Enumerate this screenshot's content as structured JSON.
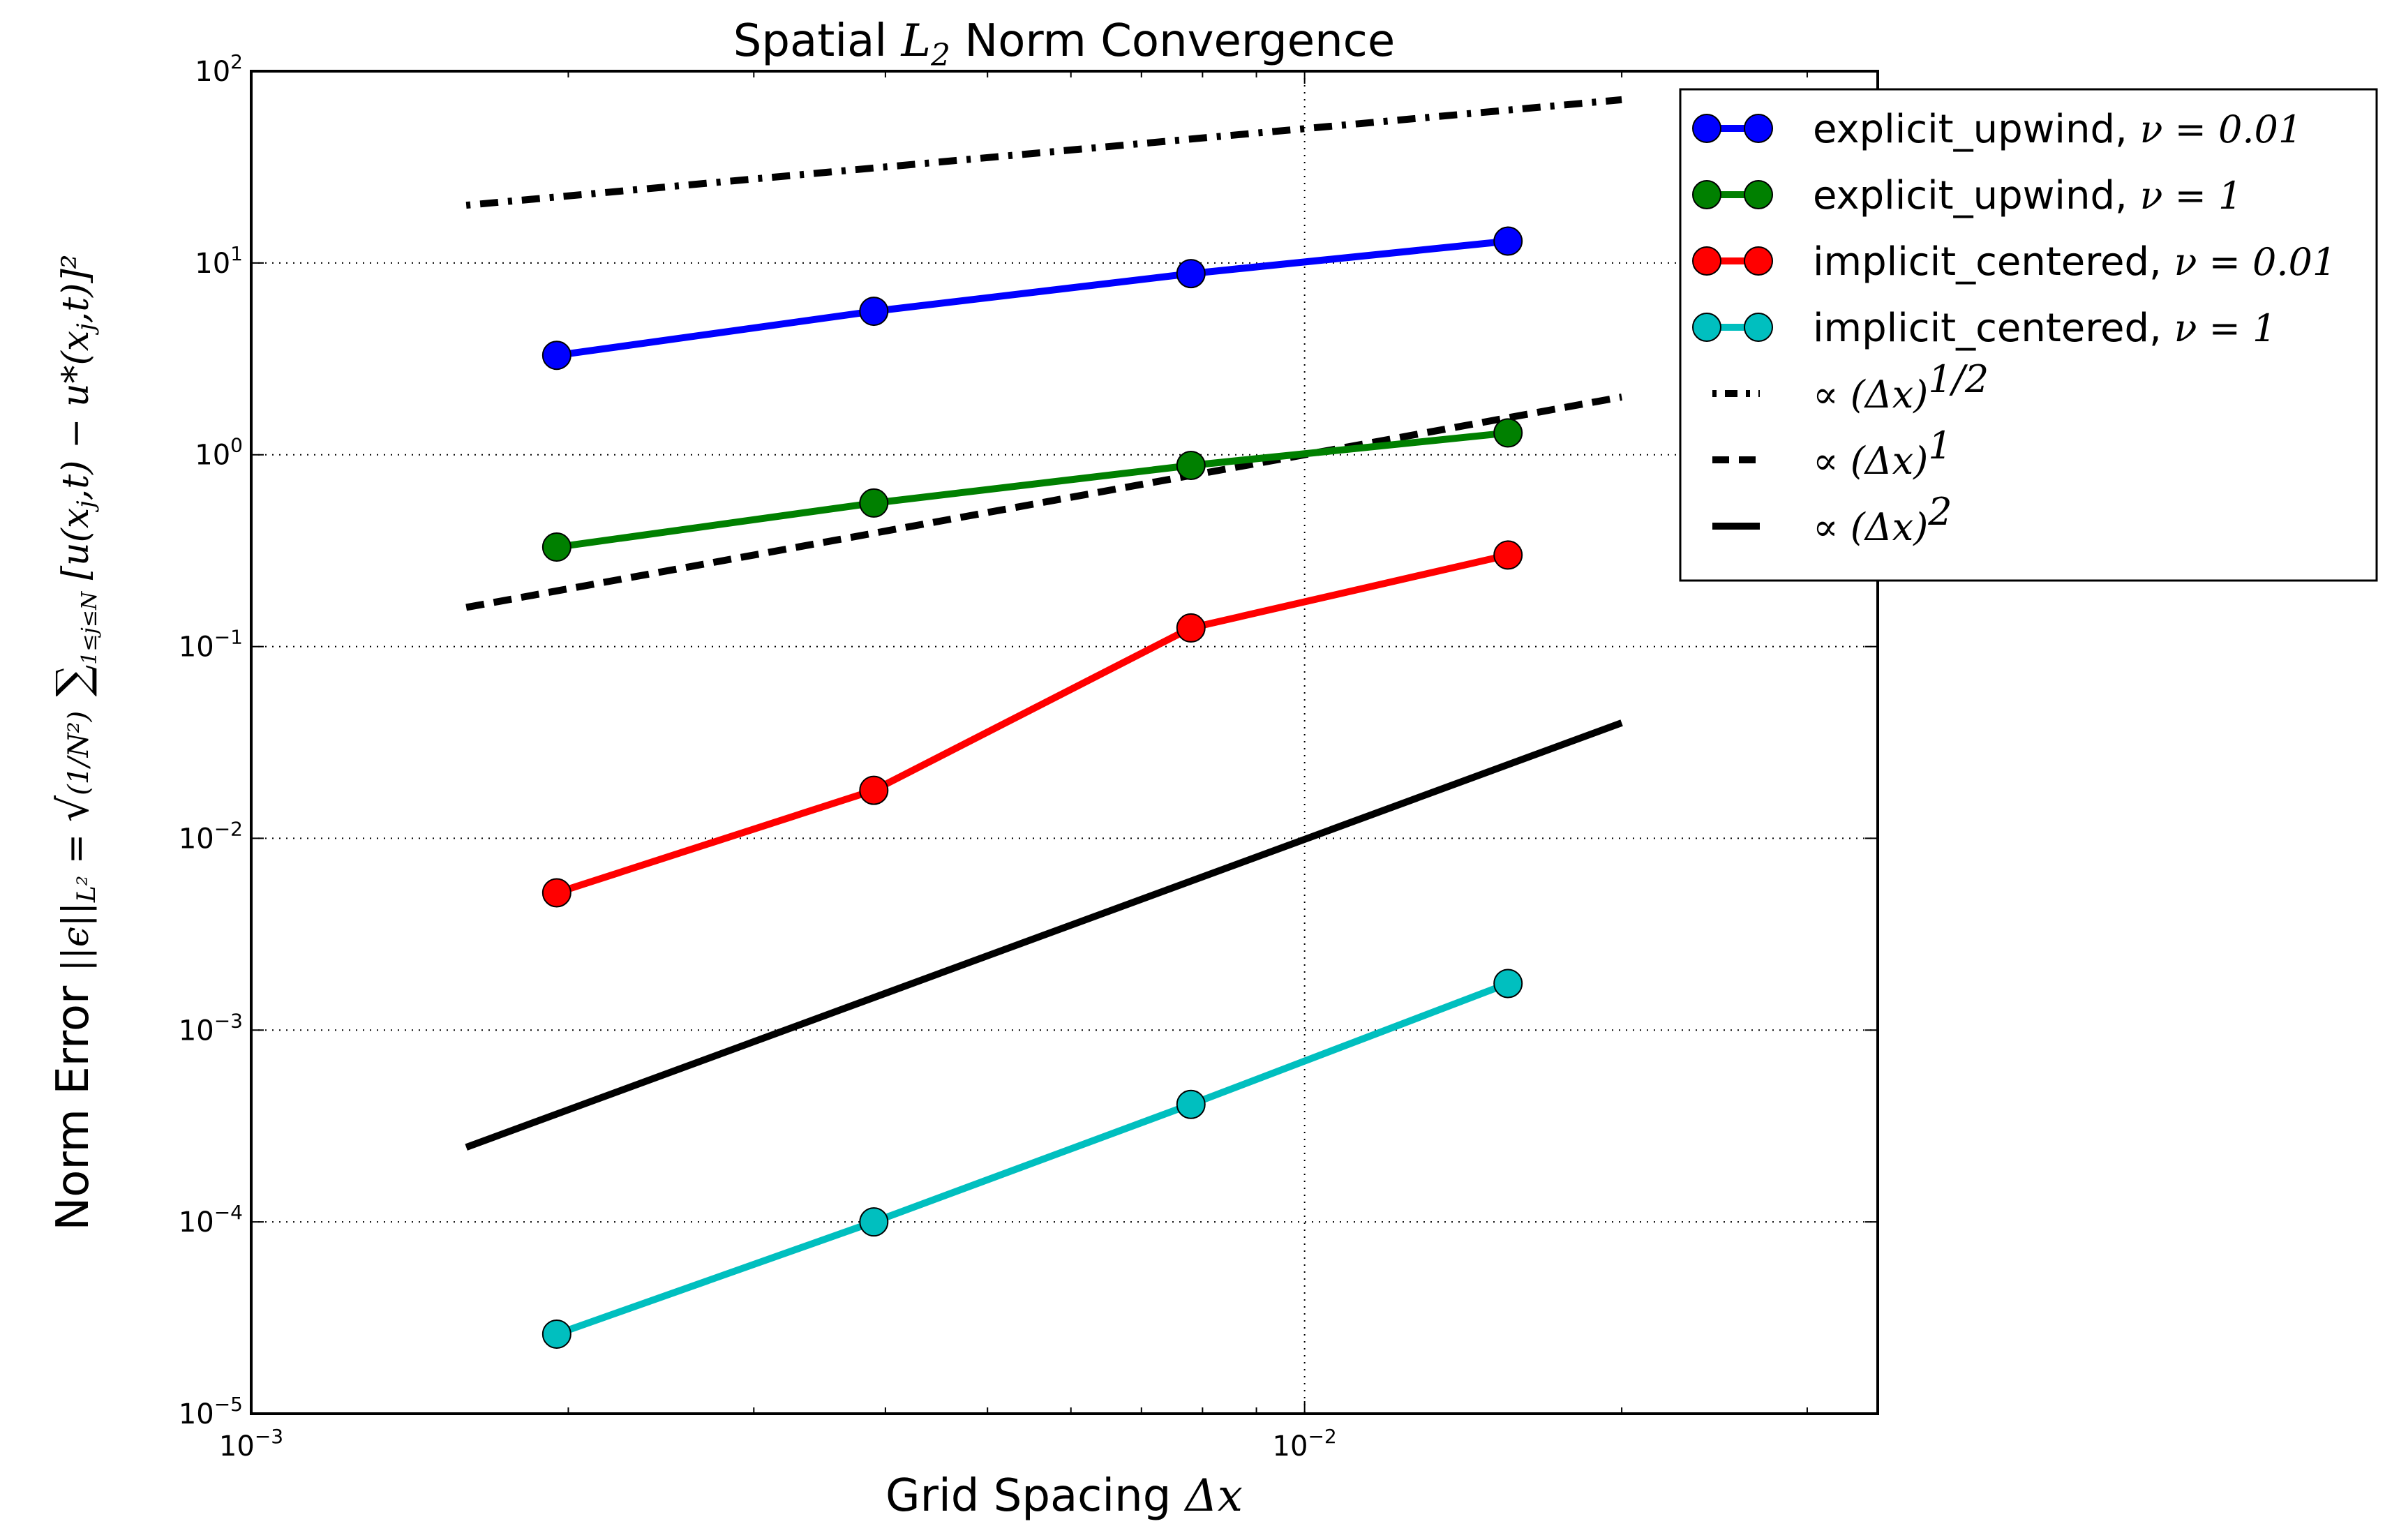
{
  "chart_data": {
    "type": "line",
    "title": "Spatial L₂ Norm Convergence",
    "xlabel": "Grid Spacing Δx",
    "ylabel": "Norm Error ||ε||L² = √( 1/N² Σ 1≤j≤N [u(xⱼ,t) − u*(xⱼ,t)]² )",
    "xscale": "log",
    "yscale": "log",
    "xlim": [
      0.001,
      0.035
    ],
    "ylim": [
      1e-05,
      100
    ],
    "x_ticks": [
      {
        "base": "10",
        "exp": "−3",
        "value": 0.001
      },
      {
        "base": "10",
        "exp": "−2",
        "value": 0.01
      }
    ],
    "y_ticks": [
      {
        "base": "10",
        "exp": "−5",
        "value": 1e-05
      },
      {
        "base": "10",
        "exp": "−4",
        "value": 0.0001
      },
      {
        "base": "10",
        "exp": "−3",
        "value": 0.001
      },
      {
        "base": "10",
        "exp": "−2",
        "value": 0.01
      },
      {
        "base": "10",
        "exp": "−1",
        "value": 0.1
      },
      {
        "base": "10",
        "exp": "0",
        "value": 1
      },
      {
        "base": "10",
        "exp": "1",
        "value": 10
      },
      {
        "base": "10",
        "exp": "2",
        "value": 100
      }
    ],
    "grid": "major dotted",
    "legend_position": "outside top-right",
    "series": [
      {
        "name": "explicit_upwind, ν = 0.01",
        "color": "#0000ff",
        "marker": "circle",
        "x": [
          0.00195,
          0.0039,
          0.0078,
          0.0156
        ],
        "y": [
          3.3,
          5.6,
          8.8,
          13.0
        ]
      },
      {
        "name": "explicit_upwind, ν = 1",
        "color": "#008000",
        "marker": "circle",
        "x": [
          0.00195,
          0.0039,
          0.0078,
          0.0156
        ],
        "y": [
          0.33,
          0.56,
          0.88,
          1.3
        ]
      },
      {
        "name": "implicit_centered, ν = 0.01",
        "color": "#ff0000",
        "marker": "circle",
        "x": [
          0.00195,
          0.0039,
          0.0078,
          0.0156
        ],
        "y": [
          0.0052,
          0.0178,
          0.125,
          0.3
        ]
      },
      {
        "name": "implicit_centered, ν = 1",
        "color": "#00bfbf",
        "marker": "circle",
        "x": [
          0.00195,
          0.0039,
          0.0078,
          0.0156
        ],
        "y": [
          2.6e-05,
          0.0001,
          0.00041,
          0.00175
        ]
      }
    ],
    "reference_lines": [
      {
        "name": "∝ (Δx)^1/2",
        "style": "dashdot",
        "color": "#000000",
        "x": [
          0.0016,
          0.02
        ],
        "y": [
          20,
          71
        ]
      },
      {
        "name": "∝ (Δx)^1",
        "style": "dashed",
        "color": "#000000",
        "x": [
          0.0016,
          0.02
        ],
        "y": [
          0.16,
          2.0
        ]
      },
      {
        "name": "∝ (Δx)^2",
        "style": "solid",
        "color": "#000000",
        "x": [
          0.0016,
          0.02
        ],
        "y": [
          0.000245,
          0.04
        ]
      }
    ]
  },
  "legend": {
    "entries": [
      {
        "text": "explicit_upwind, ",
        "math": "ν = 0.01",
        "kind": "series",
        "color": "#0000ff"
      },
      {
        "text": "explicit_upwind, ",
        "math": "ν = 1",
        "kind": "series",
        "color": "#008000"
      },
      {
        "text": "implicit_centered, ",
        "math": "ν = 0.01",
        "kind": "series",
        "color": "#ff0000"
      },
      {
        "text": "implicit_centered, ",
        "math": "ν = 1",
        "kind": "series",
        "color": "#00bfbf"
      },
      {
        "text": "",
        "math": "∝ (Δx)",
        "sup": "1/2",
        "kind": "dashdot",
        "color": "#000000"
      },
      {
        "text": "",
        "math": "∝ (Δx)",
        "sup": "1",
        "kind": "dashed",
        "color": "#000000"
      },
      {
        "text": "",
        "math": "∝ (Δx)",
        "sup": "2",
        "kind": "solid",
        "color": "#000000"
      }
    ]
  }
}
